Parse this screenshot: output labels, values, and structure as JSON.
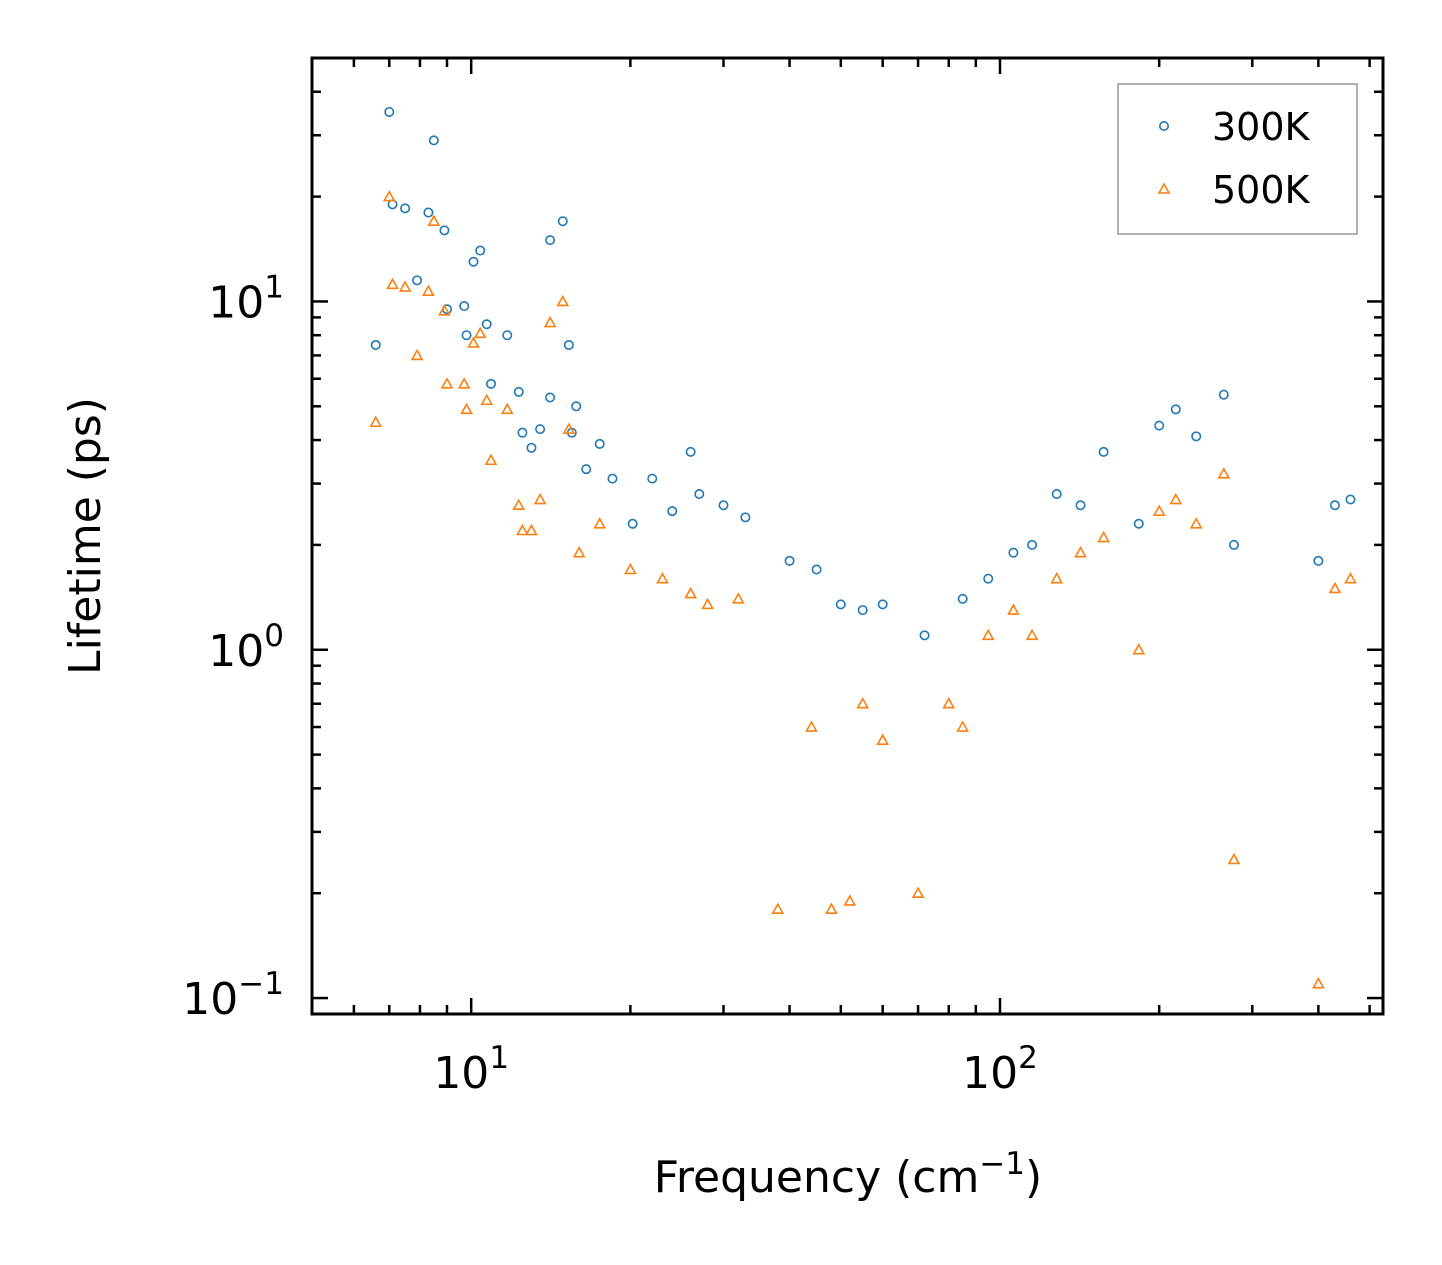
{
  "chart_data": {
    "type": "scatter",
    "xscale": "log",
    "yscale": "log",
    "xlabel": "Frequency (cm",
    "xlabel_sup": "−1",
    "xlabel_end": ")",
    "ylabel": "Lifetime (ps)",
    "xlim": [
      5.0,
      530.0
    ],
    "ylim": [
      0.09,
      50.0
    ],
    "x_ticks": [
      {
        "value": 10,
        "base": "10",
        "exp": "1"
      },
      {
        "value": 100,
        "base": "10",
        "exp": "2"
      }
    ],
    "y_ticks": [
      {
        "value": 0.1,
        "base": "10",
        "exp": "−1"
      },
      {
        "value": 1,
        "base": "10",
        "exp": "0"
      },
      {
        "value": 10,
        "base": "10",
        "exp": "1"
      }
    ],
    "legend_position": "top-right",
    "series": [
      {
        "name": "300K",
        "color": "#1f77b4",
        "marker": "circle",
        "points": [
          [
            6.6,
            7.5
          ],
          [
            7.0,
            35.0
          ],
          [
            7.1,
            19.0
          ],
          [
            7.5,
            18.5
          ],
          [
            7.9,
            11.5
          ],
          [
            8.3,
            18.0
          ],
          [
            8.5,
            29.0
          ],
          [
            8.9,
            16.0
          ],
          [
            9.0,
            9.5
          ],
          [
            9.7,
            9.7
          ],
          [
            9.8,
            8.0
          ],
          [
            10.1,
            13.0
          ],
          [
            10.4,
            14.0
          ],
          [
            10.7,
            8.6
          ],
          [
            10.9,
            5.8
          ],
          [
            11.7,
            8.0
          ],
          [
            12.3,
            5.5
          ],
          [
            12.5,
            4.2
          ],
          [
            13.0,
            3.8
          ],
          [
            13.5,
            4.3
          ],
          [
            14.1,
            5.3
          ],
          [
            14.1,
            15.0
          ],
          [
            14.9,
            17.0
          ],
          [
            15.3,
            7.5
          ],
          [
            15.5,
            4.2
          ],
          [
            15.8,
            5.0
          ],
          [
            16.5,
            3.3
          ],
          [
            17.5,
            3.9
          ],
          [
            18.5,
            3.1
          ],
          [
            20.2,
            2.3
          ],
          [
            22.0,
            3.1
          ],
          [
            24.0,
            2.5
          ],
          [
            26.0,
            3.7
          ],
          [
            27.0,
            2.8
          ],
          [
            30.0,
            2.6
          ],
          [
            33.0,
            2.4
          ],
          [
            40.0,
            1.8
          ],
          [
            45.0,
            1.7
          ],
          [
            50.0,
            1.35
          ],
          [
            55.0,
            1.3
          ],
          [
            60.0,
            1.35
          ],
          [
            72.0,
            1.1
          ],
          [
            85.0,
            1.4
          ],
          [
            95.0,
            1.6
          ],
          [
            106.0,
            1.9
          ],
          [
            115.0,
            2.0
          ],
          [
            128.0,
            2.8
          ],
          [
            142.0,
            2.6
          ],
          [
            157.0,
            3.7
          ],
          [
            183.0,
            2.3
          ],
          [
            200.0,
            4.4
          ],
          [
            215.0,
            4.9
          ],
          [
            235.0,
            4.1
          ],
          [
            265.0,
            5.4
          ],
          [
            277.0,
            2.0
          ],
          [
            400.0,
            1.8
          ],
          [
            430.0,
            2.6
          ],
          [
            460.0,
            2.7
          ]
        ]
      },
      {
        "name": "500K",
        "color": "#ff7f0e",
        "marker": "triangle",
        "points": [
          [
            6.6,
            4.5
          ],
          [
            7.0,
            20.0
          ],
          [
            7.1,
            11.2
          ],
          [
            7.5,
            11.0
          ],
          [
            7.9,
            7.0
          ],
          [
            8.3,
            10.7
          ],
          [
            8.5,
            17.0
          ],
          [
            8.9,
            9.4
          ],
          [
            9.0,
            5.8
          ],
          [
            9.7,
            5.8
          ],
          [
            9.8,
            4.9
          ],
          [
            10.1,
            7.6
          ],
          [
            10.4,
            8.1
          ],
          [
            10.7,
            5.2
          ],
          [
            10.9,
            3.5
          ],
          [
            11.7,
            4.9
          ],
          [
            12.3,
            2.6
          ],
          [
            12.5,
            2.2
          ],
          [
            13.0,
            2.2
          ],
          [
            13.5,
            2.7
          ],
          [
            14.1,
            8.7
          ],
          [
            14.9,
            10.0
          ],
          [
            15.3,
            4.3
          ],
          [
            16.0,
            1.9
          ],
          [
            17.5,
            2.3
          ],
          [
            20.0,
            1.7
          ],
          [
            23.0,
            1.6
          ],
          [
            26.0,
            1.45
          ],
          [
            28.0,
            1.35
          ],
          [
            32.0,
            1.4
          ],
          [
            38.0,
            0.18
          ],
          [
            44.0,
            0.6
          ],
          [
            48.0,
            0.18
          ],
          [
            52.0,
            0.19
          ],
          [
            55.0,
            0.7
          ],
          [
            60.0,
            0.55
          ],
          [
            70.0,
            0.2
          ],
          [
            80.0,
            0.7
          ],
          [
            85.0,
            0.6
          ],
          [
            95.0,
            1.1
          ],
          [
            106.0,
            1.3
          ],
          [
            115.0,
            1.1
          ],
          [
            128.0,
            1.6
          ],
          [
            142.0,
            1.9
          ],
          [
            157.0,
            2.1
          ],
          [
            183.0,
            1.0
          ],
          [
            200.0,
            2.5
          ],
          [
            215.0,
            2.7
          ],
          [
            235.0,
            2.3
          ],
          [
            265.0,
            3.2
          ],
          [
            277.0,
            0.25
          ],
          [
            400.0,
            0.11
          ],
          [
            430.0,
            1.5
          ],
          [
            460.0,
            1.6
          ]
        ]
      }
    ]
  }
}
